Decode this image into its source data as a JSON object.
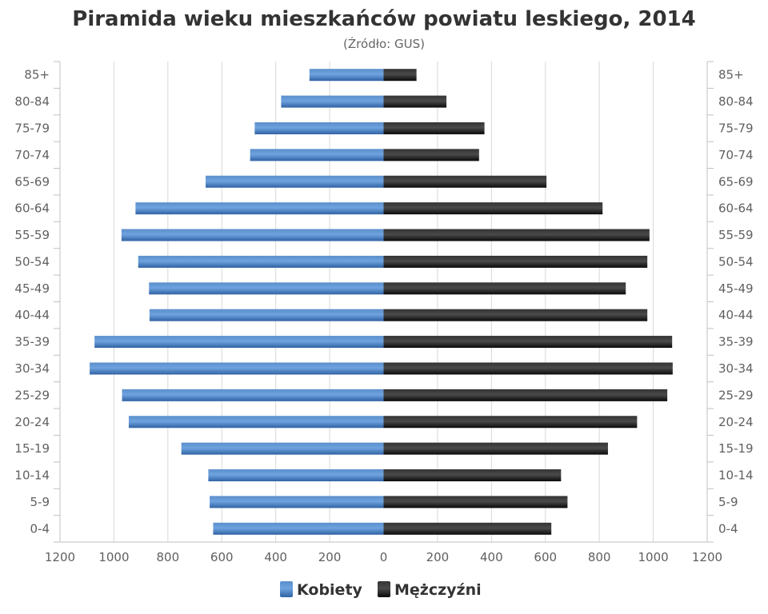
{
  "chart_data": {
    "type": "bar",
    "orientation": "horizontal-pyramid",
    "title": "Piramida wieku mieszkańców powiatu leskiego, 2014",
    "subtitle": "(Źródło: GUS)",
    "categories": [
      "85+",
      "80-84",
      "75-79",
      "70-74",
      "65-69",
      "60-64",
      "55-59",
      "50-54",
      "45-49",
      "40-44",
      "35-39",
      "30-34",
      "25-29",
      "20-24",
      "15-19",
      "10-14",
      "5-9",
      "0-4"
    ],
    "series": [
      {
        "name": "Kobiety",
        "color": "#3d76b8",
        "values": [
          275,
          380,
          478,
          495,
          660,
          920,
          972,
          910,
          870,
          868,
          1072,
          1090,
          970,
          945,
          750,
          650,
          645,
          632
        ]
      },
      {
        "name": "Mężczyźni",
        "color": "#1a1a1a",
        "values": [
          122,
          233,
          374,
          354,
          604,
          812,
          986,
          978,
          898,
          978,
          1070,
          1072,
          1052,
          940,
          832,
          658,
          682,
          622
        ]
      }
    ],
    "xlim": [
      -1200,
      1200
    ],
    "x_ticks": [
      -1200,
      -1000,
      -800,
      -600,
      -400,
      -200,
      0,
      200,
      400,
      600,
      800,
      1000,
      1200
    ],
    "x_tick_labels": [
      "1200",
      "1000",
      "800",
      "600",
      "400",
      "200",
      "0",
      "200",
      "400",
      "600",
      "800",
      "1000",
      "1200"
    ],
    "grid": true,
    "legend": "bottom-center"
  }
}
